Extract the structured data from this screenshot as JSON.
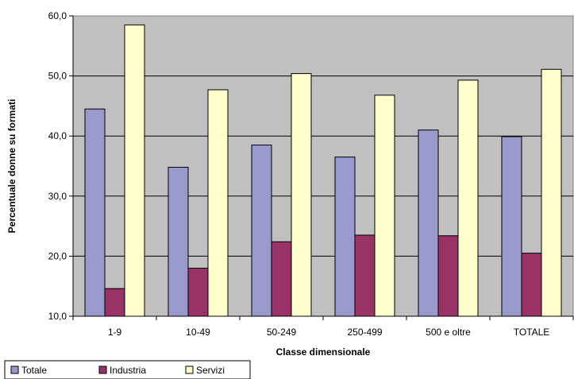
{
  "chart_data": {
    "type": "bar",
    "title": "",
    "xlabel": "Classe dimensionale",
    "ylabel": "Percentuale donne su formati",
    "categories": [
      "1-9",
      "10-49",
      "50-249",
      "250-499",
      "500 e oltre",
      "TOTALE"
    ],
    "series": [
      {
        "name": "Totale",
        "color": "#9999CC",
        "values": [
          44.5,
          34.8,
          38.5,
          36.5,
          41.0,
          39.9
        ]
      },
      {
        "name": "Industria",
        "color": "#993366",
        "values": [
          14.6,
          18.0,
          22.4,
          23.5,
          23.4,
          20.5
        ]
      },
      {
        "name": "Servizi",
        "color": "#FFFFCC",
        "values": [
          58.5,
          47.7,
          50.4,
          46.8,
          49.3,
          51.1
        ]
      }
    ],
    "ylim": [
      10,
      60
    ],
    "yticks": [
      "10,0",
      "20,0",
      "30,0",
      "40,0",
      "50,0",
      "60,0"
    ],
    "grid": true,
    "plot_background": "#C0C0C0",
    "legend_position": "bottom-left"
  }
}
